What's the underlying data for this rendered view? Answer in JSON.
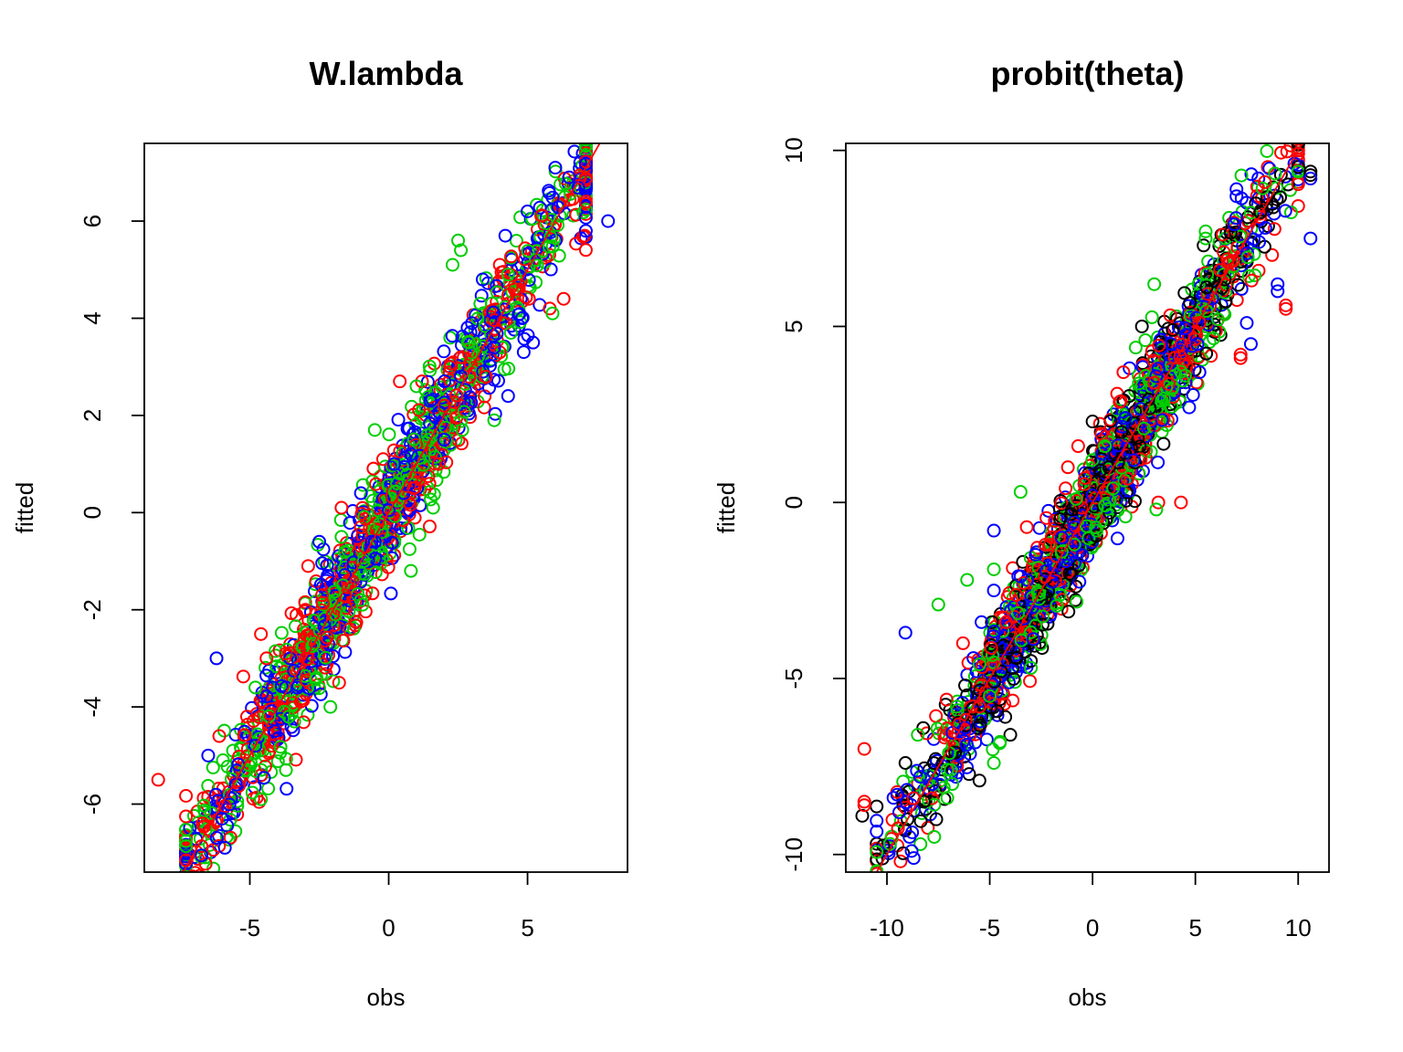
{
  "chart_data": [
    {
      "type": "scatter",
      "title": "W.lambda",
      "xlabel": "obs",
      "ylabel": "fitted",
      "xlim": [
        -8.8,
        8.6
      ],
      "ylim": [
        -7.4,
        7.6
      ],
      "xticks": [
        -5,
        0,
        5
      ],
      "xtick_labels": [
        "-5",
        "0",
        "5"
      ],
      "yticks": [
        -6,
        -4,
        -2,
        0,
        2,
        4,
        6
      ],
      "ytick_labels": [
        "-6",
        "-4",
        "-2",
        "0",
        "2",
        "4",
        "6"
      ],
      "grid": false,
      "marker": "open-circle",
      "reference_line": {
        "type": "identity",
        "slope": 1,
        "intercept": 0,
        "color": "#ff0000"
      },
      "series": [
        {
          "color": "#ff0000",
          "values": [
            [
              -8.3,
              -5.5
            ],
            [
              -6.7,
              -6.4
            ],
            [
              -6.1,
              -4.6
            ],
            [
              6.3,
              4.4
            ],
            [
              4.0,
              5.1
            ],
            [
              2.0,
              2.2
            ],
            [
              1.2,
              2.7
            ],
            [
              0.4,
              2.7
            ],
            [
              -2.9,
              -1.1
            ],
            [
              -1.0,
              -0.3
            ],
            [
              3.5,
              2.8
            ],
            [
              4.0,
              3.3
            ],
            [
              -3.0,
              -2.0
            ],
            [
              -4.6,
              -2.5
            ],
            [
              -5.1,
              -4.2
            ],
            [
              -4.4,
              -3.0
            ],
            [
              -1.7,
              0.1
            ],
            [
              0.9,
              0.5
            ],
            [
              2.6,
              3.2
            ],
            [
              5.8,
              4.2
            ],
            [
              -3.7,
              -2.9
            ],
            [
              -2.4,
              -1.7
            ],
            [
              1.8,
              1.0
            ],
            [
              -0.2,
              1.1
            ]
          ]
        },
        {
          "color": "#0000ff",
          "values": [
            [
              6.0,
              7.1
            ],
            [
              6.5,
              6.9
            ],
            [
              7.9,
              6.0
            ],
            [
              7.1,
              5.8
            ],
            [
              5.0,
              6.2
            ],
            [
              4.2,
              5.7
            ],
            [
              -6.2,
              -3.0
            ],
            [
              -6.0,
              -6.3
            ],
            [
              -5.9,
              -6.9
            ],
            [
              -6.5,
              -5.0
            ],
            [
              -5.5,
              -5.6
            ],
            [
              -4.8,
              -4.8
            ],
            [
              5.2,
              3.5
            ],
            [
              4.8,
              4.0
            ],
            [
              2.0,
              1.5
            ],
            [
              -1.0,
              0.4
            ],
            [
              -2.5,
              -0.6
            ],
            [
              -3.7,
              -3.6
            ],
            [
              3.0,
              3.9
            ],
            [
              1.5,
              2.3
            ],
            [
              -0.5,
              -0.6
            ],
            [
              0.2,
              1.0
            ],
            [
              2.6,
              2.8
            ],
            [
              -4.1,
              -4.5
            ],
            [
              4.3,
              2.4
            ],
            [
              -2.2,
              -1.3
            ],
            [
              0.8,
              1.2
            ],
            [
              3.8,
              3.4
            ]
          ]
        },
        {
          "color": "#00cd00",
          "values": [
            [
              2.5,
              5.6
            ],
            [
              2.6,
              5.4
            ],
            [
              2.3,
              5.1
            ],
            [
              5.3,
              5.2
            ],
            [
              4.3,
              4.9
            ],
            [
              5.9,
              4.1
            ],
            [
              -4.6,
              -5.9
            ],
            [
              -3.7,
              -5.3
            ],
            [
              -5.1,
              -5.3
            ],
            [
              3.8,
              1.9
            ],
            [
              1.6,
              0.1
            ],
            [
              0.8,
              -1.2
            ],
            [
              -1.7,
              -0.5
            ],
            [
              -1.9,
              -2.1
            ],
            [
              -2.6,
              -3.4
            ],
            [
              -3.4,
              -4.3
            ],
            [
              -2.1,
              -4.0
            ],
            [
              -0.5,
              1.7
            ],
            [
              1.0,
              2.6
            ],
            [
              3.3,
              4.3
            ],
            [
              4.4,
              3.7
            ],
            [
              2.9,
              3.5
            ],
            [
              -0.9,
              -1.0
            ],
            [
              -4.8,
              -3.6
            ],
            [
              -2.7,
              -2.7
            ],
            [
              1.4,
              1.6
            ],
            [
              0.3,
              0.6
            ],
            [
              -1.0,
              -1.8
            ]
          ]
        }
      ]
    },
    {
      "type": "scatter",
      "title": "probit(theta)",
      "xlabel": "obs",
      "ylabel": "fitted",
      "xlim": [
        -12.0,
        11.5
      ],
      "ylim": [
        -10.5,
        10.2
      ],
      "xticks": [
        -10,
        -5,
        0,
        5,
        10
      ],
      "xtick_labels": [
        "-10",
        "-5",
        "0",
        "5",
        "10"
      ],
      "yticks": [
        -10,
        -5,
        0,
        5,
        10
      ],
      "ytick_labels": [
        "-10",
        "-5",
        "0",
        "5",
        "10"
      ],
      "grid": false,
      "marker": "open-circle",
      "reference_line": {
        "type": "identity",
        "slope": 1,
        "intercept": 0,
        "color": "#ff0000"
      },
      "series": [
        {
          "color": "#000000",
          "values": [
            [
              -11.2,
              -8.9
            ],
            [
              -9.1,
              -7.4
            ],
            [
              -9.0,
              -9.0
            ],
            [
              -8.2,
              -8.5
            ],
            [
              -7.6,
              -9.0
            ],
            [
              -5.5,
              -7.9
            ],
            [
              10.6,
              9.4
            ],
            [
              10.6,
              9.3
            ],
            [
              5.4,
              7.3
            ],
            [
              2.4,
              5.0
            ],
            [
              -1.0,
              -0.2
            ],
            [
              -3.0,
              -4.5
            ],
            [
              -4.0,
              -6.6
            ],
            [
              0.0,
              2.3
            ],
            [
              1.4,
              2.0
            ],
            [
              3.9,
              4.9
            ],
            [
              6.3,
              6.1
            ],
            [
              -6.2,
              -5.2
            ],
            [
              -2.4,
              -2.6
            ],
            [
              0.8,
              1.0
            ]
          ]
        },
        {
          "color": "#ff0000",
          "values": [
            [
              -11.1,
              -8.6
            ],
            [
              -11.1,
              -7.0
            ],
            [
              -11.1,
              -8.5
            ],
            [
              -8.7,
              -8.4
            ],
            [
              -6.5,
              -6.3
            ],
            [
              -7.1,
              -5.6
            ],
            [
              9.4,
              5.5
            ],
            [
              9.4,
              5.6
            ],
            [
              7.2,
              4.1
            ],
            [
              7.2,
              4.2
            ],
            [
              4.3,
              0.0
            ],
            [
              3.2,
              0.0
            ],
            [
              -0.7,
              1.6
            ],
            [
              -1.2,
              1.0
            ],
            [
              -2.3,
              -1.2
            ],
            [
              -4.2,
              -3.4
            ],
            [
              -5.5,
              -5.8
            ],
            [
              1.5,
              3.7
            ],
            [
              3.0,
              3.4
            ],
            [
              5.2,
              5.1
            ],
            [
              6.2,
              6.6
            ],
            [
              -3.2,
              -0.7
            ],
            [
              0.8,
              0.4
            ],
            [
              -6.3,
              -4.0
            ]
          ]
        },
        {
          "color": "#0000ff",
          "values": [
            [
              -9.1,
              -3.7
            ],
            [
              -9.5,
              -8.3
            ],
            [
              -9.4,
              -8.8
            ],
            [
              -8.9,
              -9.5
            ],
            [
              -8.8,
              -9.9
            ],
            [
              -8.7,
              -10.1
            ],
            [
              -4.8,
              -2.5
            ],
            [
              -4.8,
              -0.8
            ],
            [
              -5.4,
              -3.4
            ],
            [
              10.6,
              9.2
            ],
            [
              10.6,
              7.5
            ],
            [
              7.0,
              8.9
            ],
            [
              7.0,
              8.7
            ],
            [
              6.9,
              7.9
            ],
            [
              8.4,
              7.8
            ],
            [
              8.1,
              7.4
            ],
            [
              9.0,
              6.2
            ],
            [
              9.0,
              6.0
            ],
            [
              7.5,
              5.1
            ],
            [
              7.7,
              4.5
            ],
            [
              5.1,
              4.5
            ],
            [
              5.2,
              3.7
            ],
            [
              4.7,
              2.7
            ],
            [
              2.0,
              1.2
            ],
            [
              0.0,
              0.2
            ],
            [
              -1.5,
              -1.0
            ],
            [
              -3.5,
              -2.1
            ],
            [
              -6.2,
              -6.4
            ],
            [
              -7.8,
              -8.0
            ],
            [
              3.2,
              3.8
            ],
            [
              -0.5,
              -1.5
            ],
            [
              1.6,
              2.4
            ]
          ]
        },
        {
          "color": "#00cd00",
          "values": [
            [
              -7.7,
              -9.5
            ],
            [
              -8.5,
              -6.6
            ],
            [
              -7.5,
              -2.9
            ],
            [
              -6.1,
              -2.2
            ],
            [
              -4.8,
              -1.9
            ],
            [
              -3.5,
              0.3
            ],
            [
              -4.8,
              -7.4
            ],
            [
              -4.5,
              -6.8
            ],
            [
              5.5,
              7.7
            ],
            [
              5.5,
              7.5
            ],
            [
              3.1,
              -0.2
            ],
            [
              1.6,
              -0.4
            ],
            [
              3.0,
              6.2
            ],
            [
              2.1,
              4.4
            ],
            [
              -5.0,
              -5.5
            ],
            [
              -5.5,
              -4.6
            ],
            [
              -2.6,
              -2.6
            ],
            [
              -1.5,
              -1.4
            ],
            [
              0.2,
              -0.8
            ],
            [
              1.0,
              0.4
            ],
            [
              4.5,
              3.6
            ],
            [
              -3.0,
              -4.7
            ],
            [
              -6.6,
              -5.8
            ],
            [
              2.5,
              2.1
            ],
            [
              6.1,
              5.2
            ],
            [
              -0.8,
              0.1
            ],
            [
              0.6,
              1.6
            ],
            [
              -6.9,
              -7.6
            ]
          ]
        }
      ]
    }
  ]
}
